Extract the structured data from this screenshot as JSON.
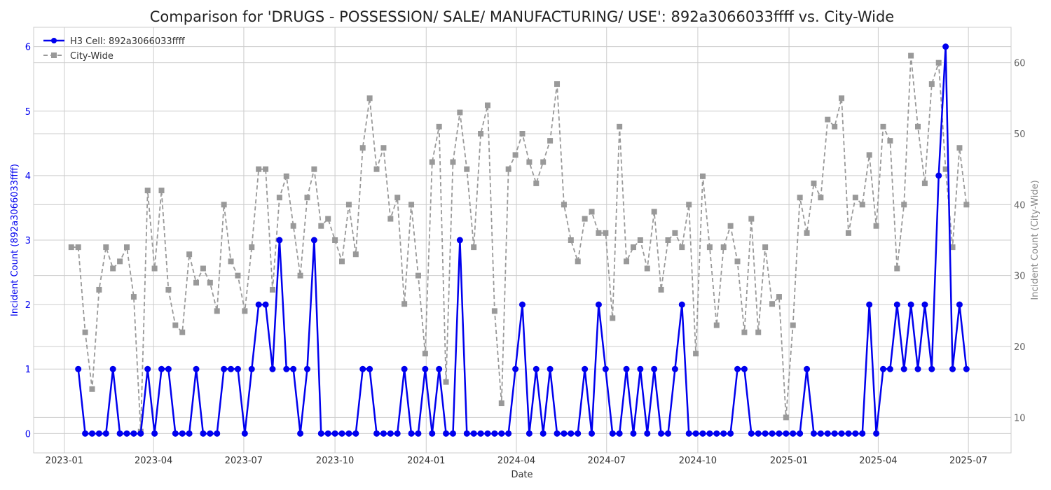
{
  "chart_data": {
    "type": "line",
    "title": "Comparison for 'DRUGS - POSSESSION/ SALE/ MANUFACTURING/ USE': 892a3066033ffff vs. City-Wide",
    "xlabel": "Date",
    "ylabel_left": "Incident Count (892a3066033ffff)",
    "ylabel_right": "Incident Count (City-Wide)",
    "ylim_left": [
      -0.3,
      6.3
    ],
    "ylim_right": [
      5,
      65
    ],
    "yticks_left": [
      0,
      1,
      2,
      3,
      4,
      5,
      6
    ],
    "yticks_right": [
      10,
      20,
      30,
      40,
      50,
      60
    ],
    "x_ticks": [
      "2023-01",
      "2023-04",
      "2023-07",
      "2023-10",
      "2024-01",
      "2024-04",
      "2024-07",
      "2024-10",
      "2025-01",
      "2025-04",
      "2025-07"
    ],
    "x_range": [
      "2022-12-01",
      "2025-08-13"
    ],
    "grid": true,
    "legend_position": "upper-left",
    "colors": {
      "cell": "#0000ee",
      "city": "#999999"
    },
    "series": [
      {
        "name": "H3 Cell: 892a3066033ffff",
        "axis": "left",
        "style": "solid-circle",
        "x": [
          "2023-01-15",
          "2023-01-22",
          "2023-01-29",
          "2023-02-05",
          "2023-02-12",
          "2023-02-19",
          "2023-02-26",
          "2023-03-05",
          "2023-03-12",
          "2023-03-19",
          "2023-03-26",
          "2023-04-02",
          "2023-04-09",
          "2023-04-16",
          "2023-04-23",
          "2023-04-30",
          "2023-05-07",
          "2023-05-14",
          "2023-05-21",
          "2023-05-28",
          "2023-06-04",
          "2023-06-11",
          "2023-06-18",
          "2023-06-25",
          "2023-07-02",
          "2023-07-09",
          "2023-07-16",
          "2023-07-23",
          "2023-07-30",
          "2023-08-06",
          "2023-08-13",
          "2023-08-20",
          "2023-08-27",
          "2023-09-03",
          "2023-09-10",
          "2023-09-17",
          "2023-09-24",
          "2023-10-01",
          "2023-10-08",
          "2023-10-15",
          "2023-10-22",
          "2023-10-29",
          "2023-11-05",
          "2023-11-12",
          "2023-11-19",
          "2023-11-26",
          "2023-12-03",
          "2023-12-10",
          "2023-12-17",
          "2023-12-24",
          "2023-12-31",
          "2024-01-07",
          "2024-01-14",
          "2024-01-21",
          "2024-01-28",
          "2024-02-04",
          "2024-02-11",
          "2024-02-18",
          "2024-02-25",
          "2024-03-03",
          "2024-03-10",
          "2024-03-17",
          "2024-03-24",
          "2024-03-31",
          "2024-04-07",
          "2024-04-14",
          "2024-04-21",
          "2024-04-28",
          "2024-05-05",
          "2024-05-12",
          "2024-05-19",
          "2024-05-26",
          "2024-06-02",
          "2024-06-09",
          "2024-06-16",
          "2024-06-23",
          "2024-06-30",
          "2024-07-07",
          "2024-07-14",
          "2024-07-21",
          "2024-07-28",
          "2024-08-04",
          "2024-08-11",
          "2024-08-18",
          "2024-08-25",
          "2024-09-01",
          "2024-09-08",
          "2024-09-15",
          "2024-09-22",
          "2024-09-29",
          "2024-10-06",
          "2024-10-13",
          "2024-10-20",
          "2024-10-27",
          "2024-11-03",
          "2024-11-10",
          "2024-11-17",
          "2024-11-24",
          "2024-12-01",
          "2024-12-08",
          "2024-12-15",
          "2024-12-22",
          "2024-12-29",
          "2025-01-05",
          "2025-01-12",
          "2025-01-19",
          "2025-01-26",
          "2025-02-02",
          "2025-02-09",
          "2025-02-16",
          "2025-02-23",
          "2025-03-02",
          "2025-03-09",
          "2025-03-16",
          "2025-03-23",
          "2025-03-30",
          "2025-04-06",
          "2025-04-13",
          "2025-04-20",
          "2025-04-27",
          "2025-05-04",
          "2025-05-11",
          "2025-05-18",
          "2025-05-25",
          "2025-06-01",
          "2025-06-08",
          "2025-06-15",
          "2025-06-22",
          "2025-06-29"
        ],
        "values": [
          1,
          0,
          0,
          0,
          0,
          1,
          0,
          0,
          0,
          0,
          1,
          0,
          1,
          1,
          0,
          0,
          0,
          1,
          0,
          0,
          0,
          1,
          1,
          1,
          0,
          1,
          2,
          2,
          1,
          3,
          1,
          1,
          0,
          1,
          3,
          0,
          0,
          0,
          0,
          0,
          0,
          1,
          1,
          0,
          0,
          0,
          0,
          1,
          0,
          0,
          1,
          0,
          1,
          0,
          0,
          3,
          0,
          0,
          0,
          0,
          0,
          0,
          0,
          1,
          2,
          0,
          1,
          0,
          1,
          0,
          0,
          0,
          0,
          1,
          0,
          2,
          1,
          0,
          0,
          1,
          0,
          1,
          0,
          1,
          0,
          0,
          1,
          2,
          0,
          0,
          0,
          0,
          0,
          0,
          0,
          1,
          1,
          0,
          0,
          0,
          0,
          0,
          0,
          0,
          0,
          1,
          0,
          0,
          0,
          0,
          0,
          0,
          0,
          0,
          2,
          0,
          1,
          1,
          2,
          1,
          2,
          1,
          2,
          1,
          4,
          6,
          1,
          2,
          1
        ]
      },
      {
        "name": "City-Wide",
        "axis": "right",
        "style": "dashed-square",
        "x": [
          "2023-01-08",
          "2023-01-15",
          "2023-01-22",
          "2023-01-29",
          "2023-02-05",
          "2023-02-12",
          "2023-02-19",
          "2023-02-26",
          "2023-03-05",
          "2023-03-12",
          "2023-03-19",
          "2023-03-26",
          "2023-04-02",
          "2023-04-09",
          "2023-04-16",
          "2023-04-23",
          "2023-04-30",
          "2023-05-07",
          "2023-05-14",
          "2023-05-21",
          "2023-05-28",
          "2023-06-04",
          "2023-06-11",
          "2023-06-18",
          "2023-06-25",
          "2023-07-02",
          "2023-07-09",
          "2023-07-16",
          "2023-07-23",
          "2023-07-30",
          "2023-08-06",
          "2023-08-13",
          "2023-08-20",
          "2023-08-27",
          "2023-09-03",
          "2023-09-10",
          "2023-09-17",
          "2023-09-24",
          "2023-10-01",
          "2023-10-08",
          "2023-10-15",
          "2023-10-22",
          "2023-10-29",
          "2023-11-05",
          "2023-11-12",
          "2023-11-19",
          "2023-11-26",
          "2023-12-03",
          "2023-12-10",
          "2023-12-17",
          "2023-12-24",
          "2023-12-31",
          "2024-01-07",
          "2024-01-14",
          "2024-01-21",
          "2024-01-28",
          "2024-02-04",
          "2024-02-11",
          "2024-02-18",
          "2024-02-25",
          "2024-03-03",
          "2024-03-10",
          "2024-03-17",
          "2024-03-24",
          "2024-03-31",
          "2024-04-07",
          "2024-04-14",
          "2024-04-21",
          "2024-04-28",
          "2024-05-05",
          "2024-05-12",
          "2024-05-19",
          "2024-05-26",
          "2024-06-02",
          "2024-06-09",
          "2024-06-16",
          "2024-06-23",
          "2024-06-30",
          "2024-07-07",
          "2024-07-14",
          "2024-07-21",
          "2024-07-28",
          "2024-08-04",
          "2024-08-11",
          "2024-08-18",
          "2024-08-25",
          "2024-09-01",
          "2024-09-08",
          "2024-09-15",
          "2024-09-22",
          "2024-09-29",
          "2024-10-06",
          "2024-10-13",
          "2024-10-20",
          "2024-10-27",
          "2024-11-03",
          "2024-11-10",
          "2024-11-17",
          "2024-11-24",
          "2024-12-01",
          "2024-12-08",
          "2024-12-15",
          "2024-12-22",
          "2024-12-29",
          "2025-01-05",
          "2025-01-12",
          "2025-01-19",
          "2025-01-26",
          "2025-02-02",
          "2025-02-09",
          "2025-02-16",
          "2025-02-23",
          "2025-03-02",
          "2025-03-09",
          "2025-03-16",
          "2025-03-23",
          "2025-03-30",
          "2025-04-06",
          "2025-04-13",
          "2025-04-20",
          "2025-04-27",
          "2025-05-04",
          "2025-05-11",
          "2025-05-18",
          "2025-05-25",
          "2025-06-01",
          "2025-06-08",
          "2025-06-15",
          "2025-06-22",
          "2025-06-29"
        ],
        "values": [
          34,
          34,
          22,
          14,
          28,
          34,
          31,
          32,
          34,
          27,
          8,
          42,
          31,
          42,
          28,
          23,
          22,
          33,
          29,
          31,
          29,
          25,
          40,
          32,
          30,
          25,
          34,
          45,
          45,
          28,
          41,
          44,
          37,
          30,
          41,
          45,
          37,
          38,
          35,
          32,
          40,
          33,
          48,
          55,
          45,
          48,
          38,
          41,
          26,
          40,
          30,
          19,
          46,
          51,
          15,
          46,
          53,
          45,
          34,
          50,
          54,
          25,
          12,
          45,
          47,
          50,
          46,
          43,
          46,
          49,
          57,
          40,
          35,
          32,
          38,
          39,
          36,
          36,
          24,
          51,
          32,
          34,
          35,
          31,
          39,
          28,
          35,
          36,
          34,
          40,
          19,
          44,
          34,
          23,
          34,
          37,
          32,
          22,
          38,
          22,
          34,
          26,
          27,
          10,
          23,
          41,
          36,
          43,
          41,
          52,
          51,
          55,
          36,
          41,
          40,
          47,
          37,
          51,
          49,
          31,
          40,
          61,
          51,
          43,
          57,
          60,
          45,
          34,
          48,
          40
        ]
      }
    ]
  }
}
